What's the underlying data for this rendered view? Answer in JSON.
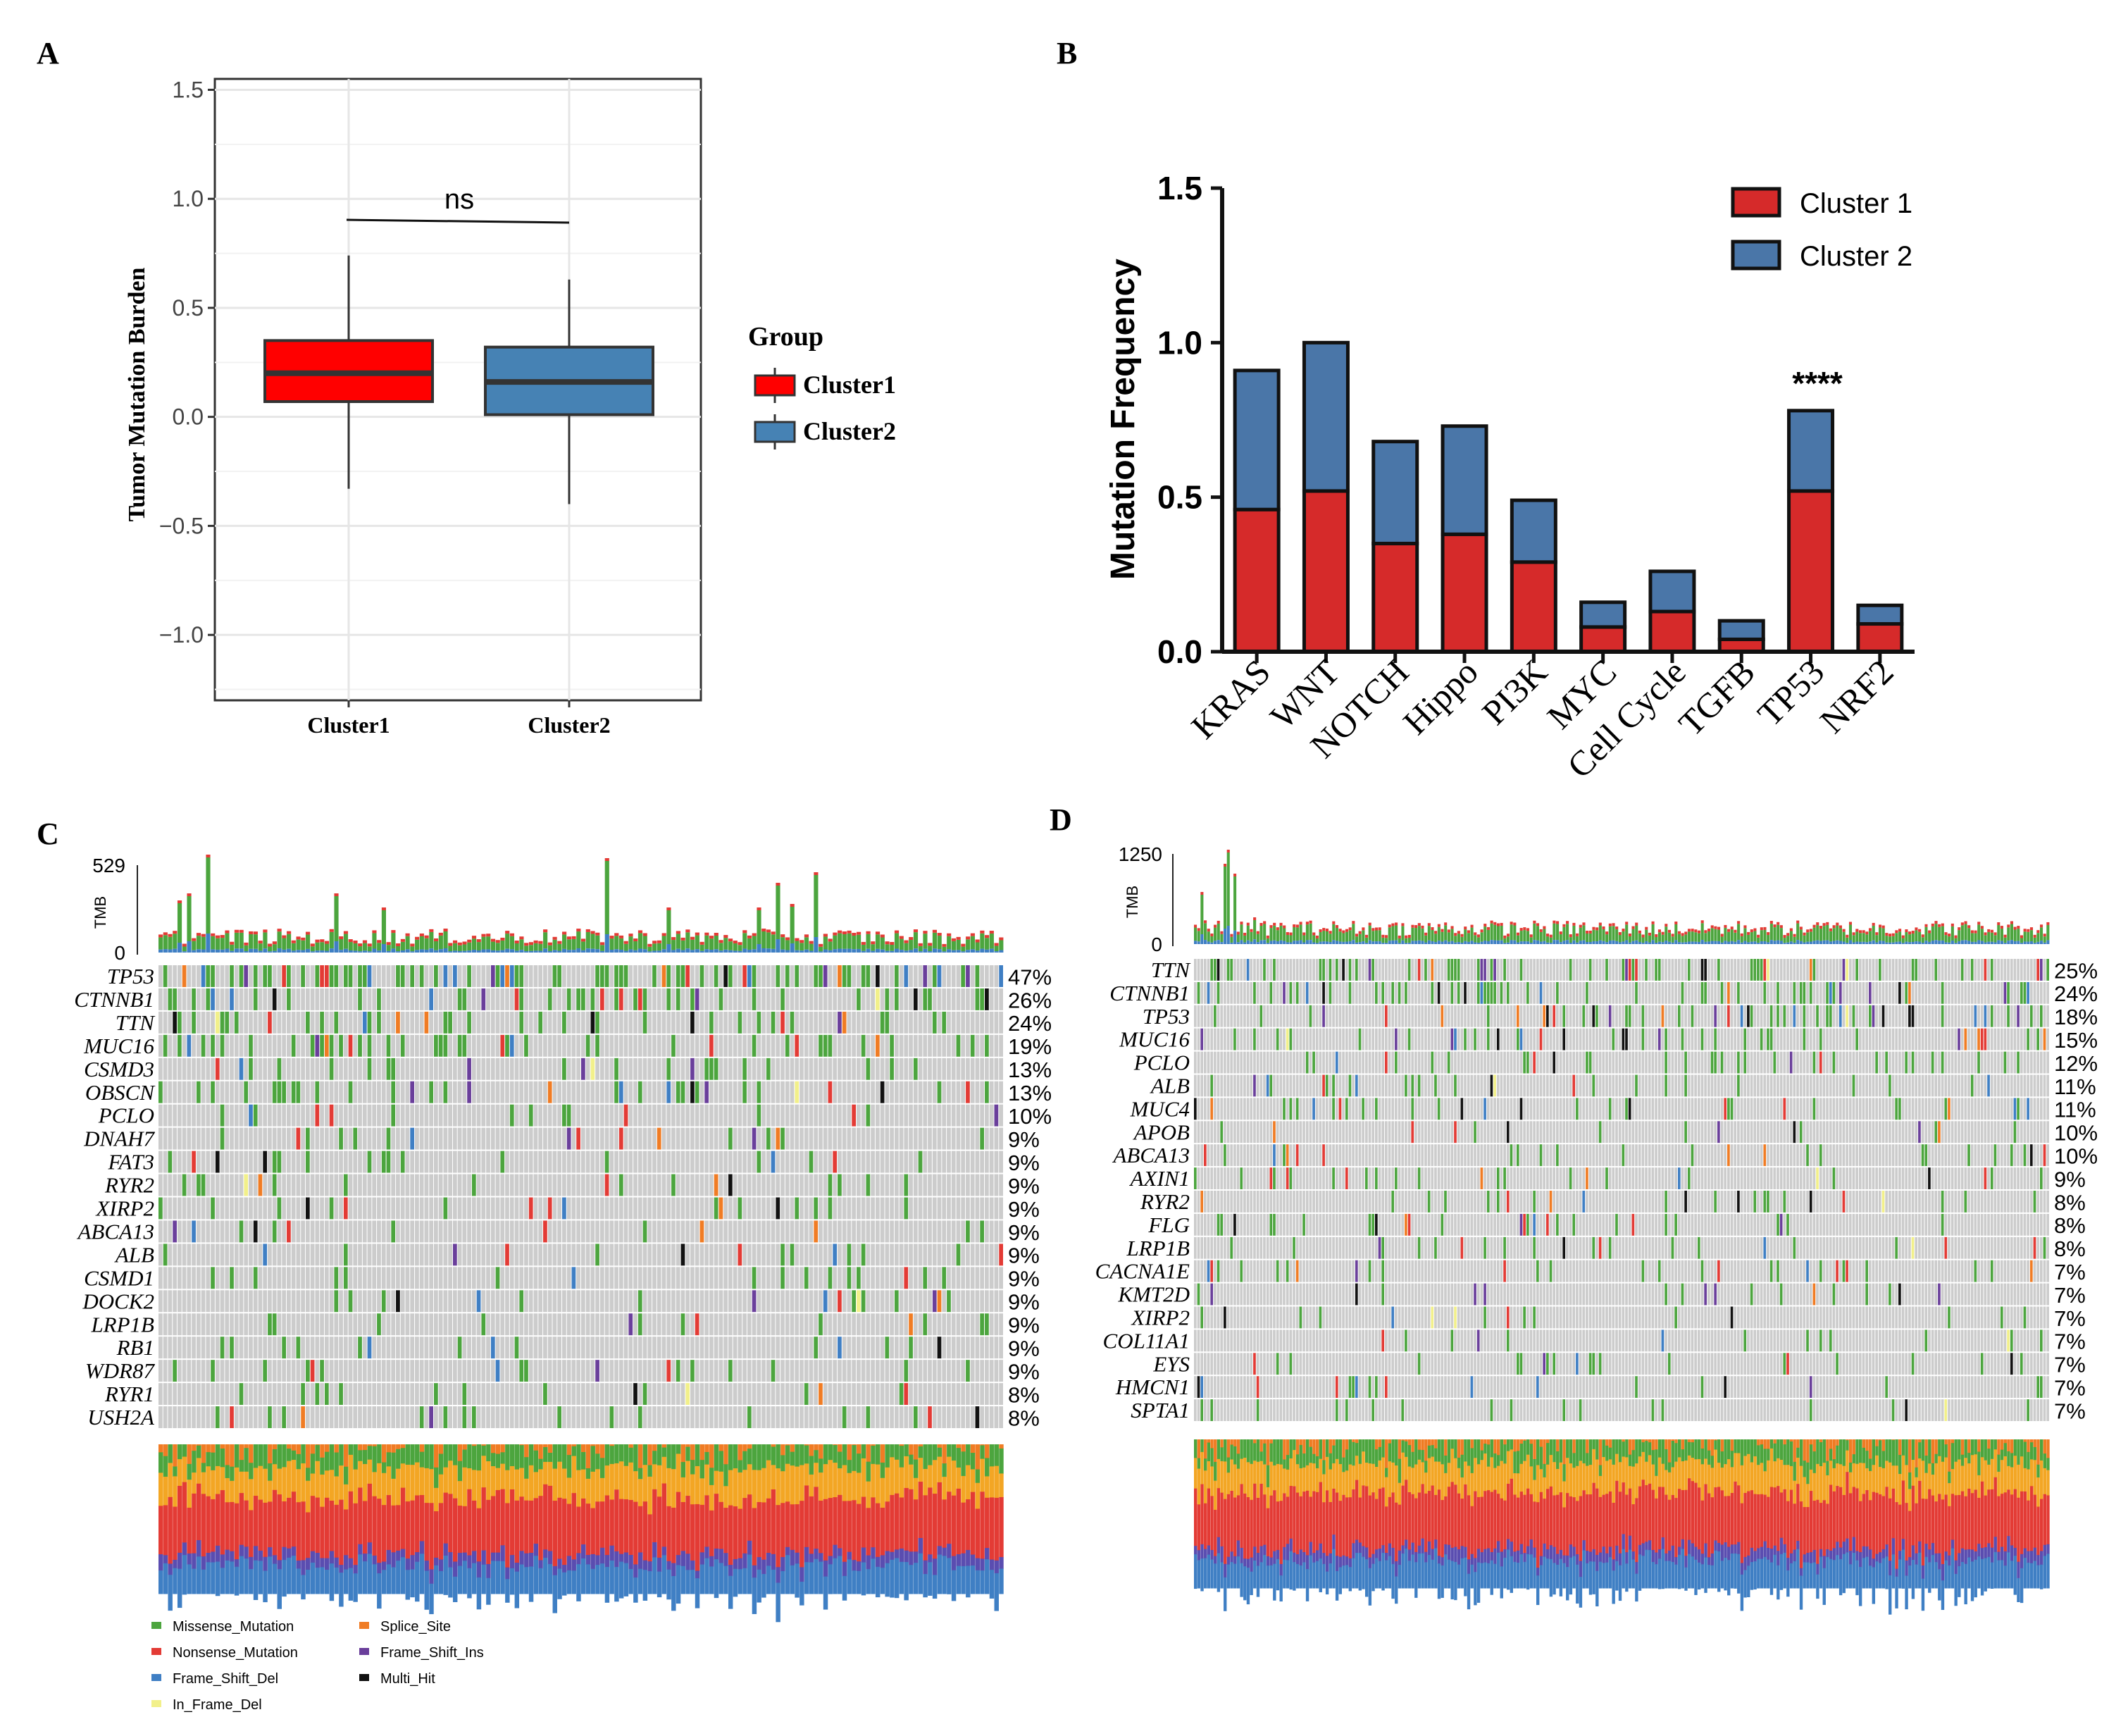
{
  "panel_labels": {
    "a": "A",
    "b": "B",
    "c": "C",
    "d": "D"
  },
  "colors": {
    "cluster1_box": "#ff0000",
    "cluster2_box": "#4682b4",
    "bar_cluster1": "#d62a2a",
    "bar_cluster2": "#4a76a8",
    "missense": "#4ca53e",
    "nonsense": "#e33b35",
    "frame_shift_del": "#3f7fc4",
    "in_frame_del": "#f2f08a",
    "splice_site": "#f07c24",
    "frame_shift_ins": "#6a3f9b",
    "multi_hit": "#111111",
    "grid_bg": "#cccccc",
    "titv_orange": "#f3a624",
    "titv_purple": "#5a4db0"
  },
  "chart_data": [
    {
      "panel": "A",
      "type": "box",
      "title": "",
      "xlabel": "",
      "ylabel": "Tumor Mutation Burden",
      "ylim": [
        -1.3,
        1.55
      ],
      "yticks": [
        1.5,
        1.0,
        0.5,
        0.0,
        -0.5,
        -1.0
      ],
      "ytick_labels": [
        "1.5",
        "1.0",
        "0.5",
        "0.0",
        "−0.5",
        "−1.0"
      ],
      "grid": true,
      "significance": "ns",
      "categories": [
        "Cluster1",
        "Cluster2"
      ],
      "boxes": [
        {
          "name": "Cluster1",
          "whisker_low": -0.33,
          "q1": 0.07,
          "median": 0.2,
          "q3": 0.35,
          "whisker_high": 0.74
        },
        {
          "name": "Cluster2",
          "whisker_low": -0.4,
          "q1": 0.01,
          "median": 0.16,
          "q3": 0.32,
          "whisker_high": 0.63
        }
      ],
      "legend": {
        "title": "Group",
        "items": [
          "Cluster1",
          "Cluster2"
        ],
        "position": "right"
      }
    },
    {
      "panel": "B",
      "type": "bar",
      "stacked": true,
      "ylabel": "Mutation Frequency",
      "xlabel": "",
      "ylim": [
        0,
        1.5
      ],
      "yticks": [
        0.0,
        0.5,
        1.0,
        1.5
      ],
      "ytick_labels": [
        "0.0",
        "0.5",
        "1.0",
        "1.5"
      ],
      "categories": [
        "KRAS",
        "WNT",
        "NOTCH",
        "Hippo",
        "PI3K",
        "MYC",
        "Cell Cycle",
        "TGFB",
        "TP53",
        "NRF2"
      ],
      "series": [
        {
          "name": "Cluster 1",
          "values": [
            0.46,
            0.52,
            0.35,
            0.38,
            0.29,
            0.08,
            0.13,
            0.04,
            0.52,
            0.09
          ]
        },
        {
          "name": "Cluster 2",
          "values": [
            0.45,
            0.48,
            0.33,
            0.35,
            0.2,
            0.08,
            0.13,
            0.06,
            0.26,
            0.06
          ]
        }
      ],
      "annotations": [
        {
          "category": "TP53",
          "text": "****"
        }
      ],
      "legend": {
        "items": [
          "Cluster 1",
          "Cluster 2"
        ],
        "position": "top-right"
      }
    },
    {
      "panel": "C",
      "type": "heatmap",
      "tmb_label": "TMB",
      "tmb_max": "529",
      "tmb_min": "0",
      "genes": [
        "TP53",
        "CTNNB1",
        "TTN",
        "MUC16",
        "CSMD3",
        "OBSCN",
        "PCLO",
        "DNAH7",
        "FAT3",
        "RYR2",
        "XIRP2",
        "ABCA13",
        "ALB",
        "CSMD1",
        "DOCK2",
        "LRP1B",
        "RB1",
        "WDR87",
        "RYR1",
        "USH2A"
      ],
      "percentages": [
        "47%",
        "26%",
        "24%",
        "19%",
        "13%",
        "13%",
        "10%",
        "9%",
        "9%",
        "9%",
        "9%",
        "9%",
        "9%",
        "9%",
        "9%",
        "9%",
        "9%",
        "9%",
        "8%",
        "8%"
      ],
      "legend": [
        "Missense_Mutation",
        "Nonsense_Mutation",
        "Frame_Shift_Del",
        "In_Frame_Del",
        "Splice_Site",
        "Frame_Shift_Ins",
        "Multi_Hit"
      ]
    },
    {
      "panel": "D",
      "type": "heatmap",
      "tmb_label": "TMB",
      "tmb_max": "1250",
      "tmb_min": "0",
      "genes": [
        "TTN",
        "CTNNB1",
        "TP53",
        "MUC16",
        "PCLO",
        "ALB",
        "MUC4",
        "APOB",
        "ABCA13",
        "AXIN1",
        "RYR2",
        "FLG",
        "LRP1B",
        "CACNA1E",
        "KMT2D",
        "XIRP2",
        "COL11A1",
        "EYS",
        "HMCN1",
        "SPTA1"
      ],
      "percentages": [
        "25%",
        "24%",
        "18%",
        "15%",
        "12%",
        "11%",
        "11%",
        "10%",
        "10%",
        "9%",
        "8%",
        "8%",
        "8%",
        "7%",
        "7%",
        "7%",
        "7%",
        "7%",
        "7%",
        "7%"
      ]
    }
  ]
}
